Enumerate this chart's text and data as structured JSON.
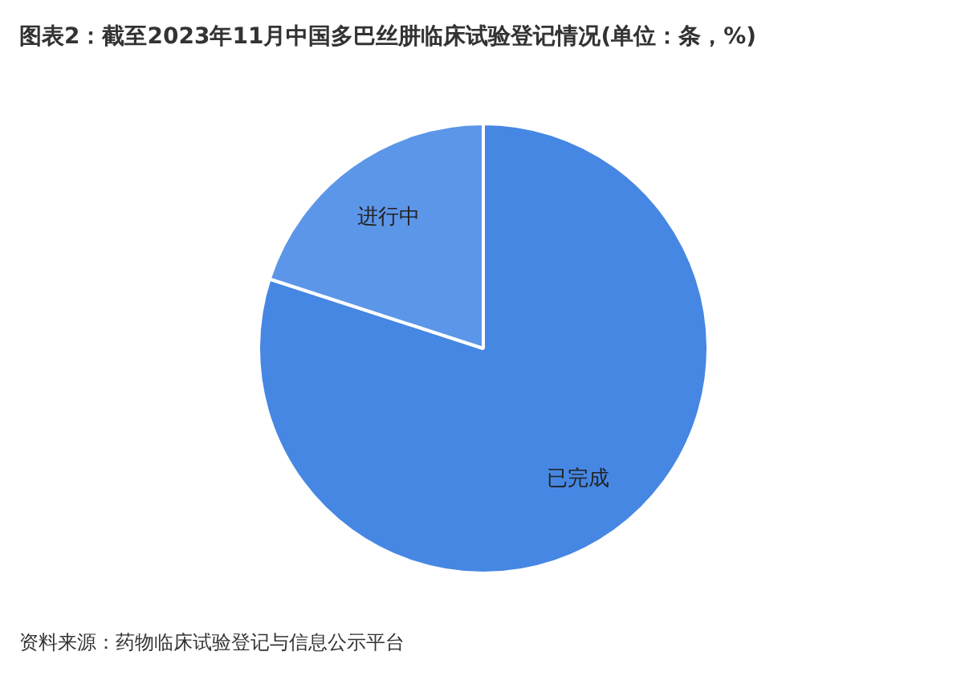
{
  "chart_data": {
    "type": "pie",
    "title": "图表2：截至2023年11月中国多巴丝肼临床试验登记情况(单位：条，%)",
    "categories": [
      "已完成",
      "进行中"
    ],
    "values": [
      80,
      20
    ],
    "colors": [
      "#4687e3",
      "#5c96e8"
    ],
    "legend": false,
    "annotations": [
      "资料来源：药物临床试验登记与信息公示平台"
    ]
  }
}
